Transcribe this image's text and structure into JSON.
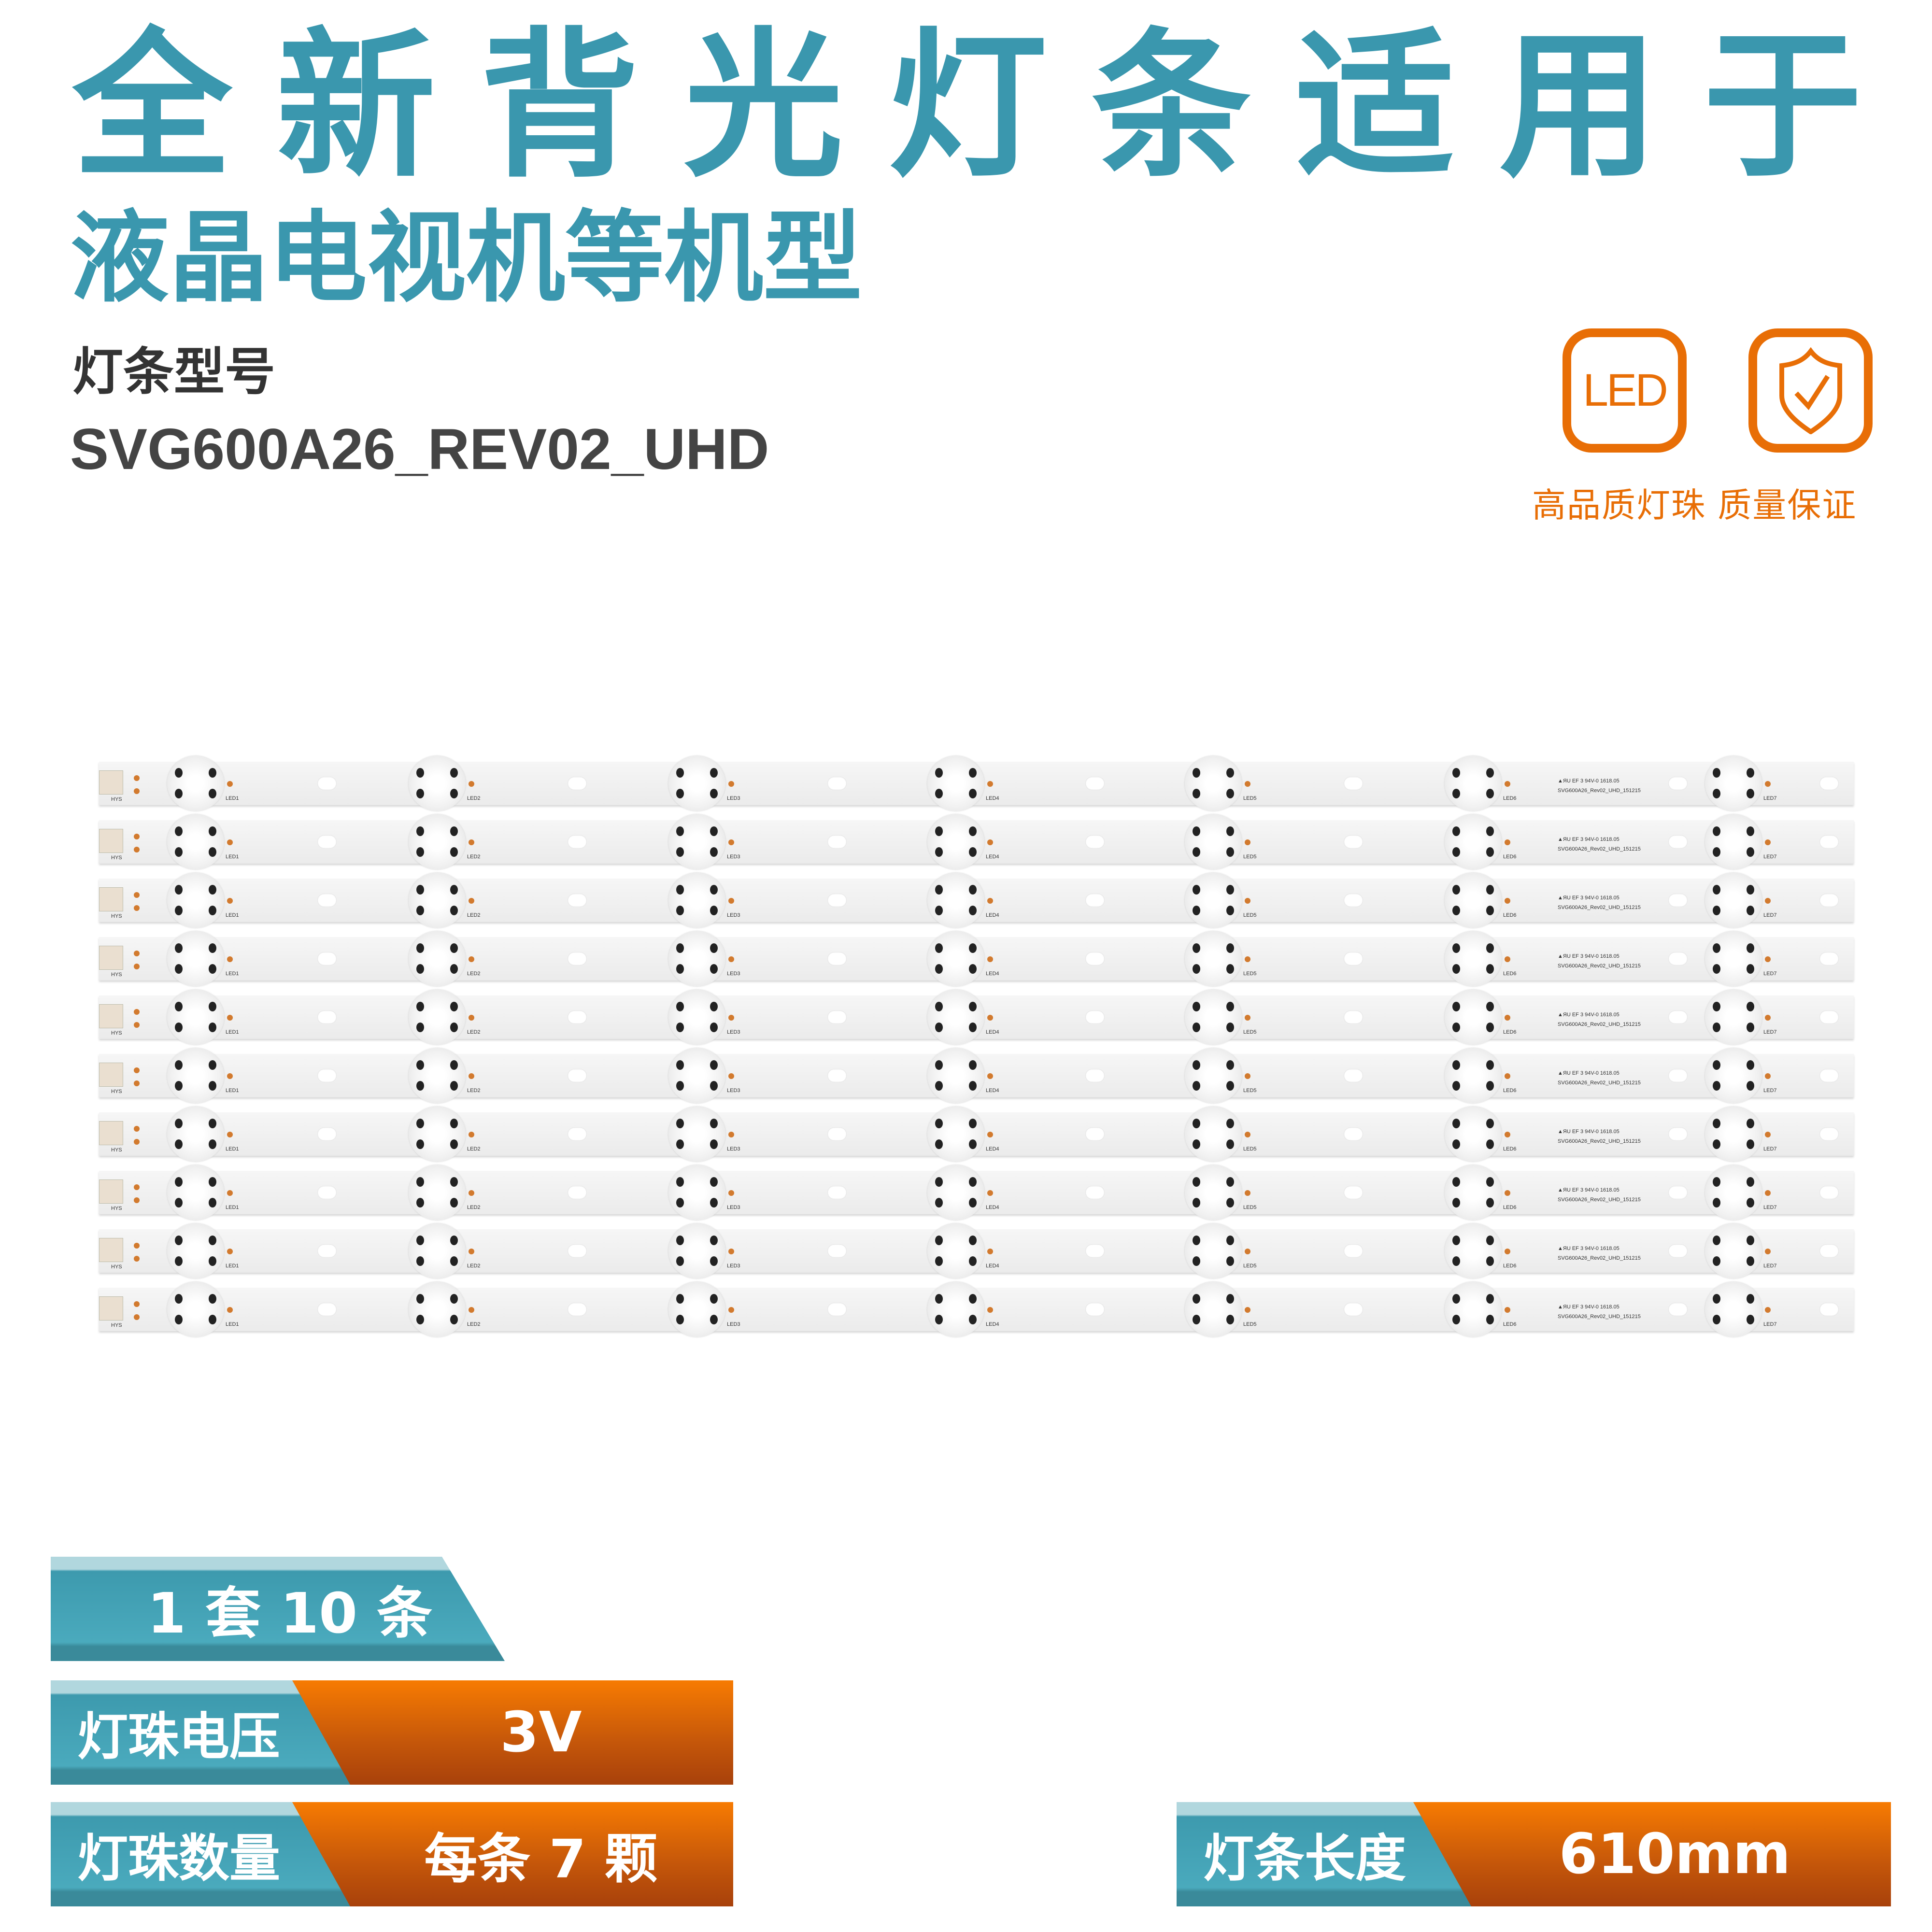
{
  "title_line1": "全新背光灯条适用于",
  "title_line2": "液晶电视机等机型",
  "model_label": "灯条型号",
  "model_number": "SVG600A26_REV02_UHD",
  "icons": {
    "led_box_text": "LED",
    "shield": "shield-check-icon",
    "caption": "高品质灯珠  质量保证",
    "color": "#e86e06"
  },
  "strips": {
    "count": 10,
    "connector_label": "HYS",
    "led_labels": [
      "LED1",
      "LED2",
      "LED3",
      "LED4",
      "LED5",
      "LED6",
      "LED7"
    ],
    "cert_text": "▲ЯU EF 3 94V-0  1618.05",
    "pcb_text": "SVG600A26_Rev02_UHD_151215"
  },
  "specs": {
    "set": "1 套 10 条",
    "voltage_label": "灯珠电压",
    "voltage_value": "3V",
    "count_label": "灯珠数量",
    "count_value": "每条 7 颗",
    "length_label": "灯条长度",
    "length_value": "610mm"
  },
  "colors": {
    "teal": "#3a97ae",
    "orange": "#f77b02"
  }
}
